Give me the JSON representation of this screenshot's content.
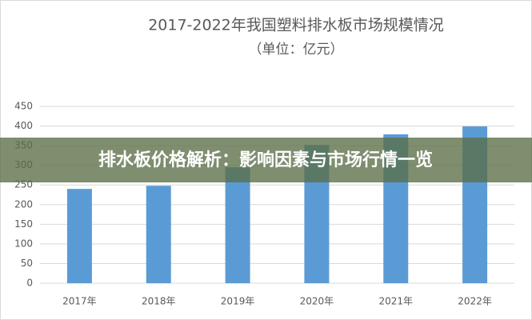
{
  "chart_data": {
    "type": "bar",
    "title": "2017-2022年我国塑料排水板市场规模情况",
    "subtitle": "（单位：亿元）",
    "categories": [
      "2017年",
      "2018年",
      "2019年",
      "2020年",
      "2021年",
      "2022年"
    ],
    "values": [
      240,
      248,
      295,
      352,
      379,
      399
    ],
    "color": "#5b9bd5",
    "ylim": [
      0,
      450
    ],
    "yticks": [
      0,
      50,
      100,
      150,
      200,
      250,
      300,
      350,
      400,
      450
    ],
    "grid": true
  },
  "banner": "排水板价格解析：影响因素与市场行情一览"
}
